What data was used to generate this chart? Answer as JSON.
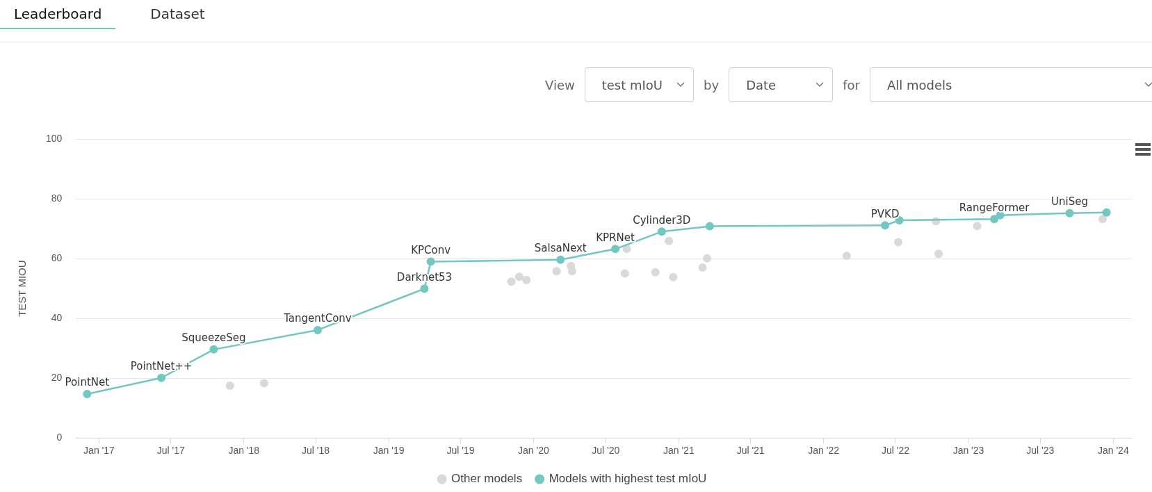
{
  "chart_data": {
    "type": "scatter",
    "ylabel": "TEST MIOU",
    "ylim": [
      0,
      100
    ],
    "yticks": [
      0,
      20,
      40,
      60,
      80,
      100
    ],
    "xlim": [
      "2016-11-04",
      "2024-02-15"
    ],
    "xticks": [
      {
        "value": "2017-01-01",
        "label": "Jan '17"
      },
      {
        "value": "2017-07-01",
        "label": "Jul '17"
      },
      {
        "value": "2018-01-01",
        "label": "Jan '18"
      },
      {
        "value": "2018-07-01",
        "label": "Jul '18"
      },
      {
        "value": "2019-01-01",
        "label": "Jan '19"
      },
      {
        "value": "2019-07-01",
        "label": "Jul '19"
      },
      {
        "value": "2020-01-01",
        "label": "Jan '20"
      },
      {
        "value": "2020-07-01",
        "label": "Jul '20"
      },
      {
        "value": "2021-01-01",
        "label": "Jan '21"
      },
      {
        "value": "2021-07-01",
        "label": "Jul '21"
      },
      {
        "value": "2022-01-01",
        "label": "Jan '22"
      },
      {
        "value": "2022-07-01",
        "label": "Jul '22"
      },
      {
        "value": "2023-01-01",
        "label": "Jan '23"
      },
      {
        "value": "2023-07-01",
        "label": "Jul '23"
      },
      {
        "value": "2024-01-01",
        "label": "Jan '24"
      }
    ],
    "grid": "y",
    "legend": "bottom",
    "marker": "circle",
    "series": [
      {
        "name": "Other models",
        "type": "scatter",
        "color": "#d9d9d9",
        "x": [
          "2017-11-27",
          "2018-02-21",
          "2019-11-06",
          "2019-11-26",
          "2019-12-14",
          "2020-02-28",
          "2020-04-04",
          "2020-04-07",
          "2020-08-23",
          "2020-08-18",
          "2020-12-07",
          "2020-11-03",
          "2020-12-18",
          "2021-03-13",
          "2021-03-02",
          "2022-02-28",
          "2022-07-08",
          "2022-10-11",
          "2022-10-18",
          "2023-01-23",
          "2023-12-05"
        ],
        "values": [
          17.5,
          18.3,
          52.3,
          53.9,
          52.8,
          55.8,
          57.5,
          55.8,
          63.2,
          55.0,
          65.9,
          55.4,
          53.8,
          60.1,
          57.0,
          60.9,
          65.5,
          72.5,
          61.6,
          70.9,
          73.2
        ]
      },
      {
        "name": "Models with highest test mIoU",
        "type": "line",
        "color": "#72c7c1",
        "x": [
          "2016-12-02",
          "2017-06-07",
          "2017-10-17",
          "2018-07-06",
          "2019-04-01",
          "2019-04-17",
          "2020-03-09",
          "2020-07-25",
          "2020-11-19",
          "2021-03-20",
          "2022-06-05",
          "2022-07-11",
          "2023-03-07",
          "2023-03-22",
          "2023-09-13",
          "2023-12-15"
        ],
        "values": [
          14.7,
          20.1,
          29.6,
          36.1,
          49.9,
          59.0,
          59.6,
          63.2,
          69.0,
          70.8,
          71.1,
          72.8,
          73.2,
          74.5,
          75.2,
          75.4
        ]
      }
    ],
    "annotations": [
      "Leaderboard",
      "Dataset",
      "View",
      "test mIoU",
      "by",
      "Date",
      "for",
      "All models",
      {
        "text": "PointNet",
        "x": "2016-12-02",
        "y": 14.7
      },
      {
        "text": "PointNet++",
        "x": "2017-06-07",
        "y": 20.1
      },
      {
        "text": "SqueezeSeg",
        "x": "2017-10-17",
        "y": 29.6
      },
      {
        "text": "TangentConv",
        "x": "2018-07-06",
        "y": 36.1
      },
      {
        "text": "Darknet53",
        "x": "2019-04-01",
        "y": 49.9
      },
      {
        "text": "KPConv",
        "x": "2019-04-17",
        "y": 59.0
      },
      {
        "text": "SalsaNext",
        "x": "2020-03-09",
        "y": 59.6
      },
      {
        "text": "KPRNet",
        "x": "2020-07-25",
        "y": 63.2
      },
      {
        "text": "Cylinder3D",
        "x": "2020-11-19",
        "y": 69.0
      },
      {
        "text": "PVKD",
        "x": "2022-06-05",
        "y": 71.1
      },
      {
        "text": "RangeFormer",
        "x": "2023-03-07",
        "y": 73.2
      },
      {
        "text": "UniSeg",
        "x": "2023-09-13",
        "y": 75.2
      }
    ]
  }
}
